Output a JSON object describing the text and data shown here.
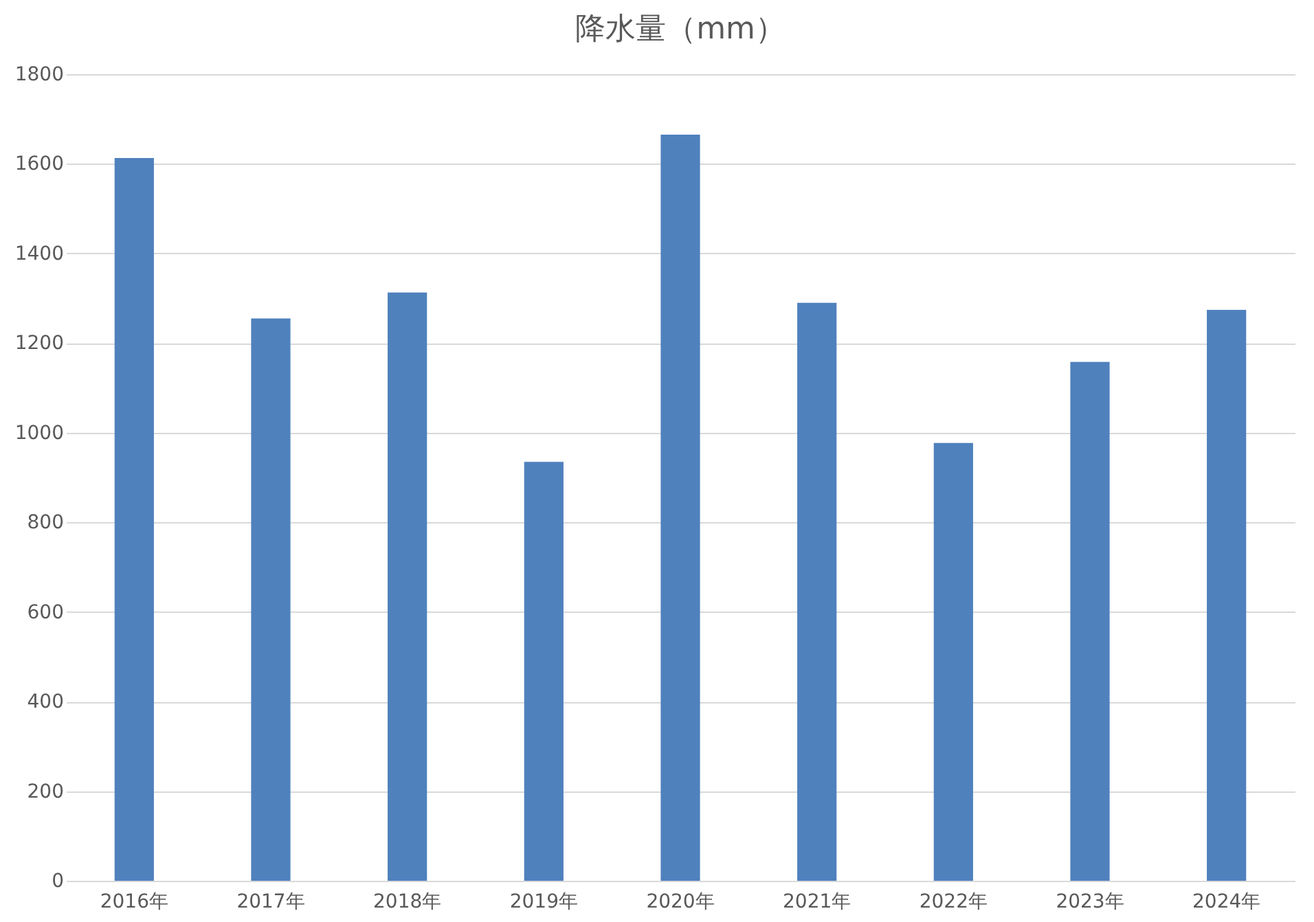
{
  "chart_data": {
    "type": "bar",
    "title": "降水量（mm）",
    "categories": [
      "2016年",
      "2017年",
      "2018年",
      "2019年",
      "2020年",
      "2021年",
      "2022年",
      "2023年",
      "2024年"
    ],
    "values": [
      1613,
      1255,
      1313,
      935,
      1665,
      1290,
      977,
      1158,
      1274
    ],
    "color": "#4f81bd",
    "ylim": [
      0,
      1800
    ],
    "yticks": [
      0,
      200,
      400,
      600,
      800,
      1000,
      1200,
      1400,
      1600,
      1800
    ],
    "grid": "y"
  }
}
